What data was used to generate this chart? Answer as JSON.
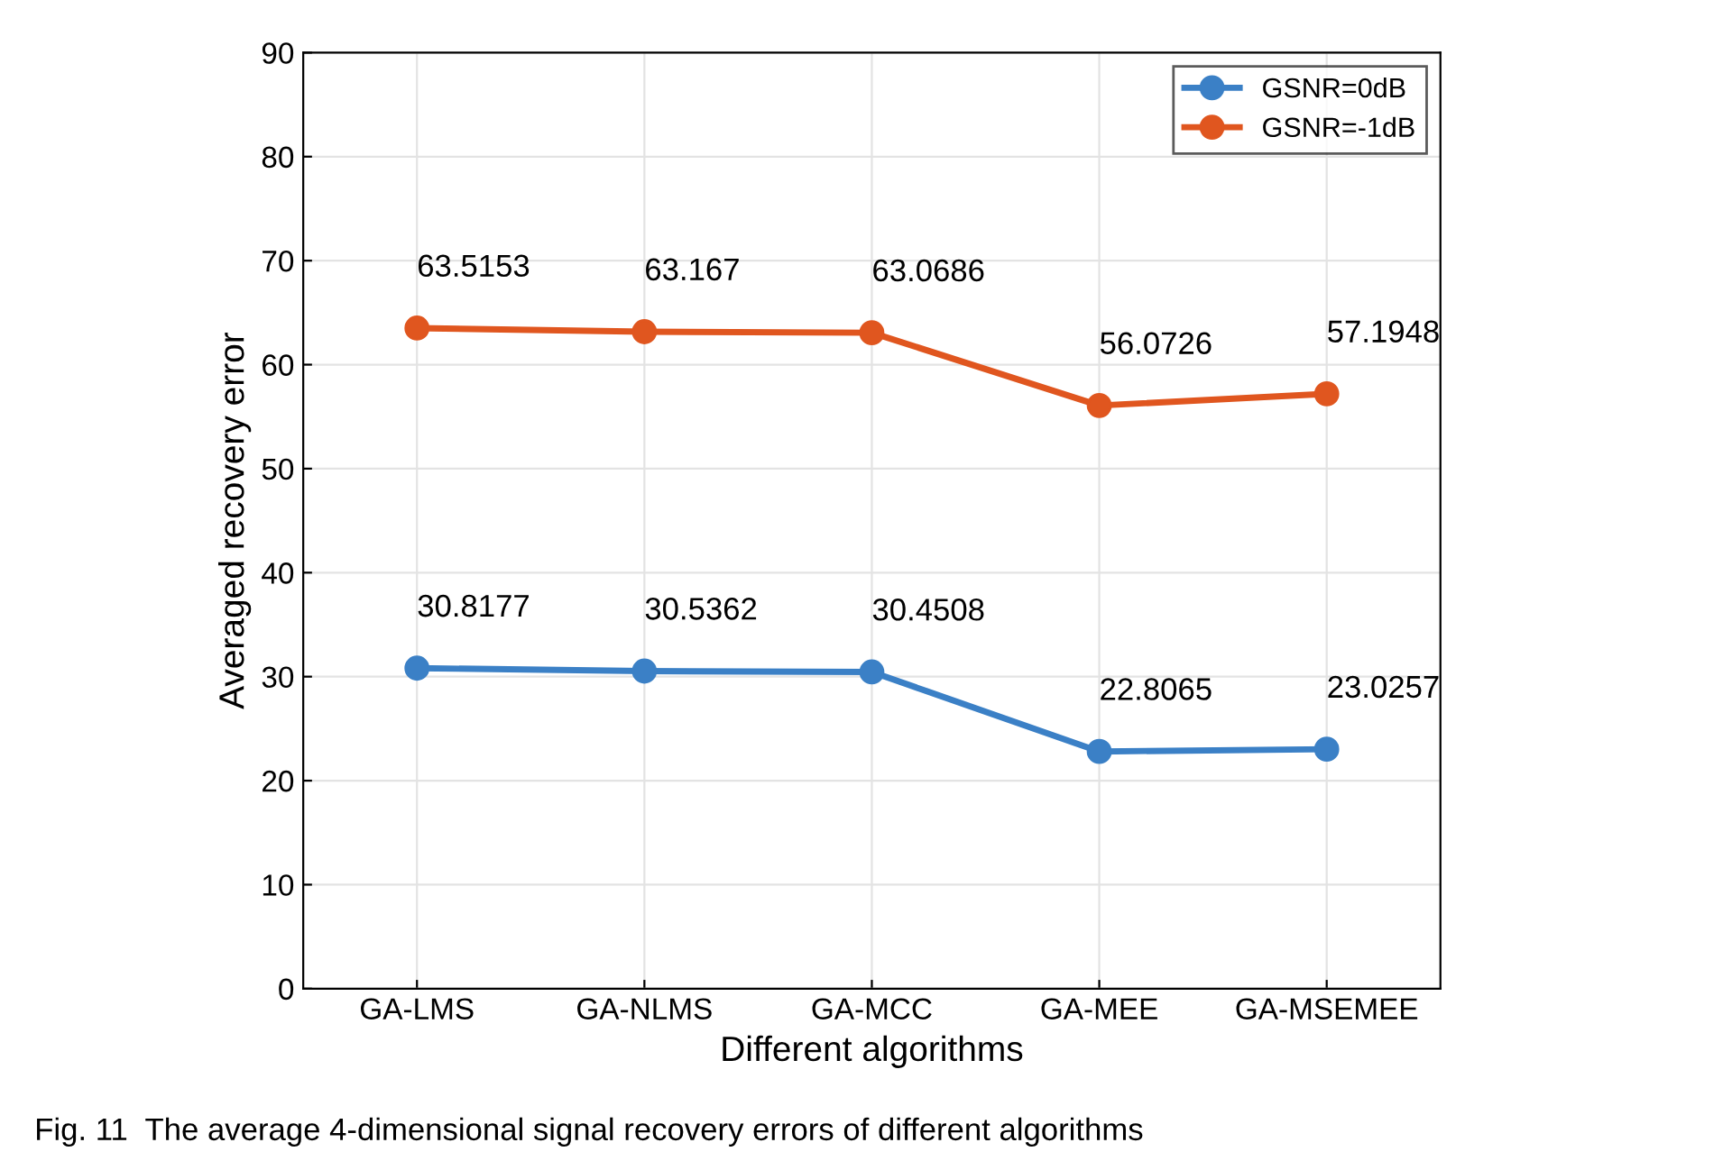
{
  "chart_data": {
    "type": "line",
    "xlabel": "Different algorithms",
    "ylabel": "Averaged recovery error",
    "categories": [
      "GA-LMS",
      "GA-NLMS",
      "GA-MCC",
      "GA-MEE",
      "GA-MSEMEE"
    ],
    "series": [
      {
        "name": "GSNR=0dB",
        "color": "#3b80c6",
        "values": [
          30.8177,
          30.5362,
          30.4508,
          22.8065,
          23.0257
        ]
      },
      {
        "name": "GSNR=-1dB",
        "color": "#e0561f",
        "values": [
          63.5153,
          63.167,
          63.0686,
          56.0726,
          57.1948
        ]
      }
    ],
    "ylim": [
      0,
      90
    ],
    "yticks": [
      0,
      10,
      20,
      30,
      40,
      50,
      60,
      70,
      80,
      90
    ],
    "grid": true,
    "legend": "top right",
    "marker": "circle",
    "line_style": "solid",
    "data_labels": true,
    "annotations": [
      "Fig. 11  The average 4-dimensional signal recovery errors of different algorithms"
    ]
  }
}
